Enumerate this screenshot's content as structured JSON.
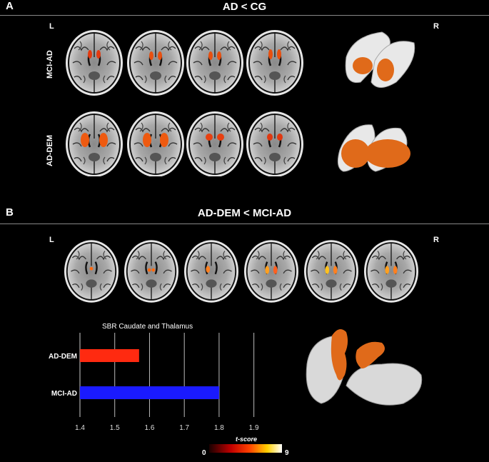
{
  "panel_a": {
    "letter": "A",
    "title": "AD < CG",
    "left_label": "L",
    "right_label": "R",
    "rows": [
      {
        "label": "MCI-AD"
      },
      {
        "label": "AD-DEM"
      }
    ]
  },
  "panel_b": {
    "letter": "B",
    "title": "AD-DEM < MCI-AD",
    "left_label": "L",
    "right_label": "R"
  },
  "chart_data": {
    "type": "bar",
    "orientation": "horizontal",
    "title": "SBR Caudate and Thalamus",
    "categories": [
      "AD-DEM",
      "MCI-AD"
    ],
    "values": [
      1.57,
      1.8
    ],
    "colors": [
      "#ff2a10",
      "#1a1aff"
    ],
    "xlim": [
      1.4,
      1.95
    ],
    "xticks": [
      "1.4",
      "1.5",
      "1.6",
      "1.7",
      "1.8",
      "1.9"
    ],
    "grid": "vertical"
  },
  "colorbar": {
    "title": "t-score",
    "min_label": "0",
    "max_label": "9"
  }
}
